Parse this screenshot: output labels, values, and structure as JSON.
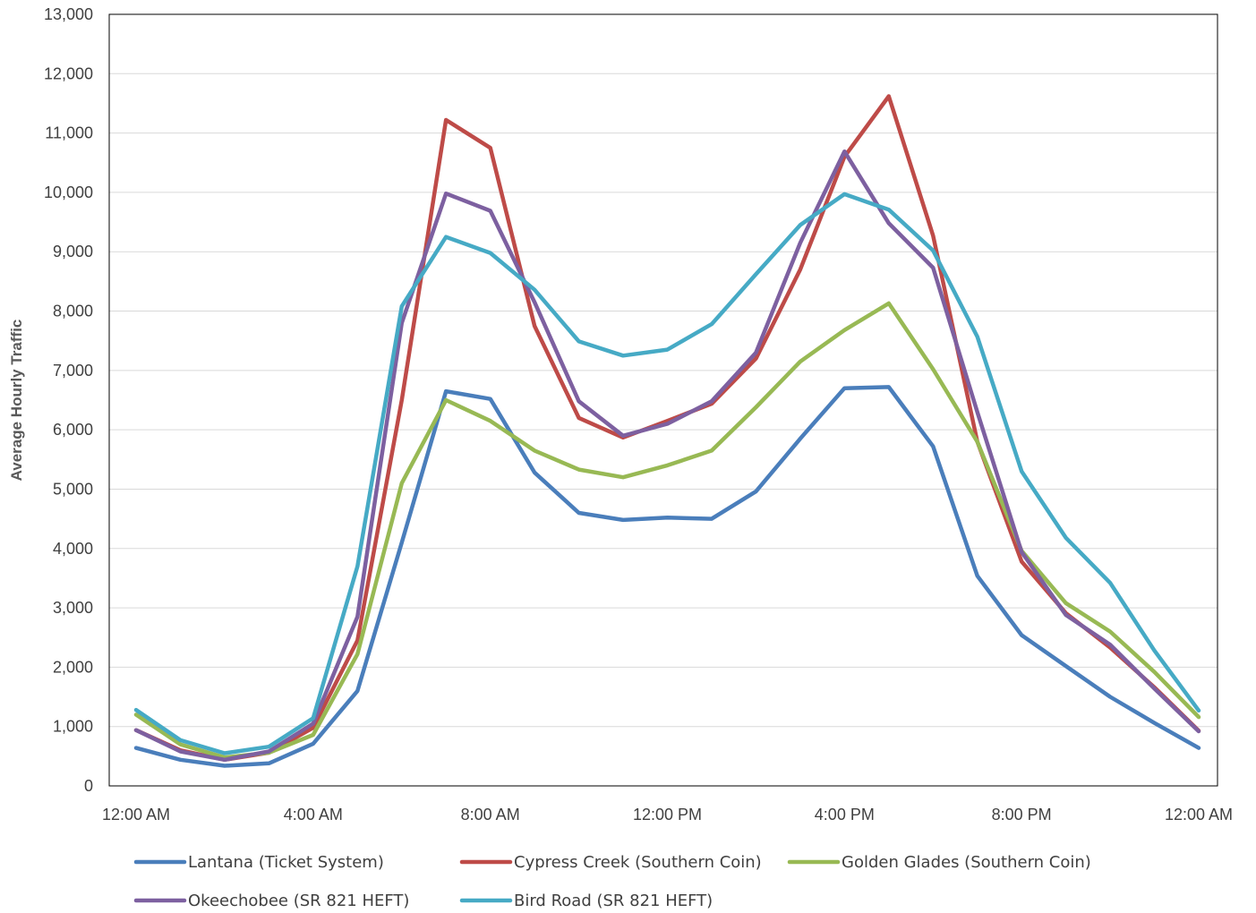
{
  "chart_data": {
    "type": "line",
    "ylabel": "Average Hourly Traffic",
    "xlabel": "",
    "ylim": [
      0,
      13000
    ],
    "y_ticks": [
      0,
      1000,
      2000,
      3000,
      4000,
      5000,
      6000,
      7000,
      8000,
      9000,
      10000,
      11000,
      12000,
      13000
    ],
    "y_tick_labels": [
      "0",
      "1,000",
      "2,000",
      "3,000",
      "4,000",
      "5,000",
      "6,000",
      "7,000",
      "8,000",
      "9,000",
      "10,000",
      "11,000",
      "12,000",
      "13,000"
    ],
    "x_tick_labels": [
      "12:00 AM",
      "4:00 AM",
      "8:00 AM",
      "12:00 PM",
      "4:00 PM",
      "8:00 PM",
      "12:00 AM"
    ],
    "x_hours": [
      0,
      1,
      2,
      3,
      4,
      5,
      6,
      7,
      8,
      9,
      10,
      11,
      12,
      13,
      14,
      15,
      16,
      17,
      18,
      19,
      20,
      21,
      22,
      23,
      24
    ],
    "grid": true,
    "legend_position": "bottom",
    "series": [
      {
        "name": "Lantana (Ticket System)",
        "color": "#4a7ebb",
        "values": [
          640,
          440,
          340,
          380,
          710,
          1600,
          4100,
          6650,
          6520,
          5280,
          4600,
          4480,
          4520,
          4500,
          4960,
          5850,
          6700,
          6720,
          5720,
          3540,
          2540,
          2020,
          1500,
          1060,
          640
        ]
      },
      {
        "name": "Cypress Creek (Southern Coin)",
        "color": "#be4b48",
        "values": [
          940,
          600,
          440,
          560,
          980,
          2450,
          6500,
          11220,
          10750,
          7750,
          6200,
          5870,
          6150,
          6440,
          7200,
          8700,
          10600,
          11620,
          9270,
          5800,
          3780,
          2910,
          2330,
          1660,
          930
        ]
      },
      {
        "name": "Golden Glades (Southern Coin)",
        "color": "#98b954",
        "values": [
          1200,
          700,
          480,
          560,
          860,
          2220,
          5100,
          6500,
          6150,
          5650,
          5330,
          5200,
          5400,
          5650,
          6380,
          7150,
          7680,
          8130,
          7020,
          5800,
          3960,
          3080,
          2600,
          1920,
          1160
        ]
      },
      {
        "name": "Okeechobee (SR 821 HEFT)",
        "color": "#7d60a0",
        "values": [
          940,
          580,
          440,
          580,
          1050,
          2850,
          7800,
          9980,
          9690,
          8150,
          6480,
          5900,
          6100,
          6480,
          7300,
          9150,
          10690,
          9480,
          8730,
          6300,
          3940,
          2880,
          2380,
          1640,
          920
        ]
      },
      {
        "name": "Bird Road (SR 821 HEFT)",
        "color": "#46aac5",
        "values": [
          1280,
          770,
          550,
          660,
          1140,
          3700,
          8080,
          9250,
          8980,
          8360,
          7490,
          7250,
          7350,
          7780,
          8620,
          9450,
          9970,
          9710,
          9020,
          7570,
          5300,
          4180,
          3420,
          2280,
          1270
        ]
      }
    ]
  }
}
